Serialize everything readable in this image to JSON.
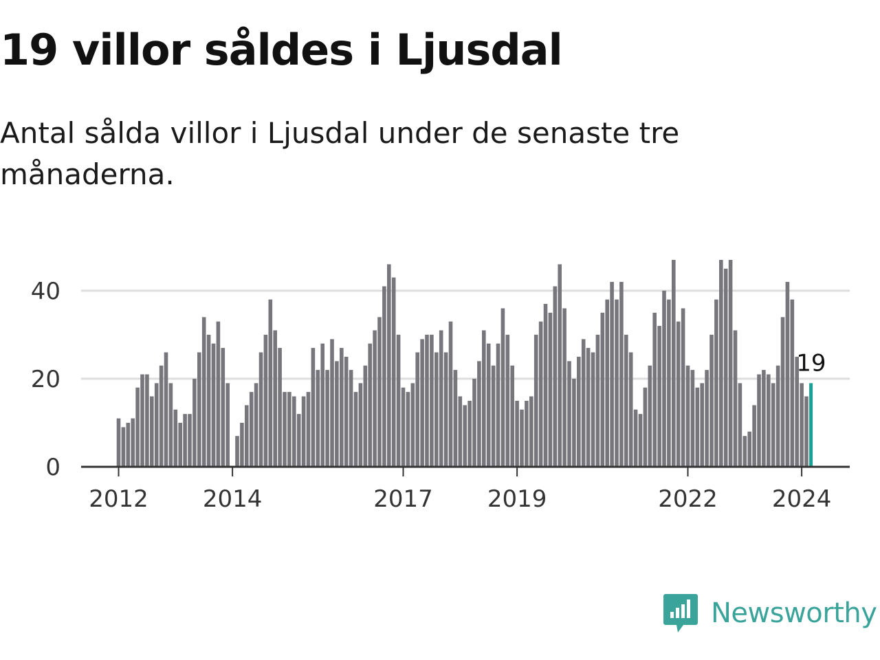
{
  "title": "19 villor såldes i Ljusdal",
  "subtitle": "Antal sålda villor i Ljusdal under de senaste tre månaderna.",
  "brand": {
    "name": "Newsworthy",
    "color": "#3aa39a",
    "icon": "bar-chart-speech-bubble-icon"
  },
  "colors": {
    "bars": "#77767c",
    "highlight": "#1aa197",
    "grid": "#dddddd",
    "axis": "#333333"
  },
  "chart_data": {
    "type": "bar",
    "title": "19 villor såldes i Ljusdal",
    "subtitle": "Antal sålda villor i Ljusdal under de senaste tre månaderna.",
    "xlabel": "",
    "ylabel": "",
    "ylim": [
      0,
      47
    ],
    "yticks": [
      0,
      20,
      40
    ],
    "xticks": [
      {
        "label": "2012",
        "index": 0
      },
      {
        "label": "2014",
        "index": 24
      },
      {
        "label": "2017",
        "index": 60
      },
      {
        "label": "2019",
        "index": 84
      },
      {
        "label": "2022",
        "index": 120
      },
      {
        "label": "2024",
        "index": 144
      }
    ],
    "grid": true,
    "legend": "none",
    "x_start": "2012-01",
    "x_end": "2024-03",
    "x_frequency": "monthly",
    "values": [
      11,
      9,
      10,
      11,
      18,
      21,
      21,
      16,
      19,
      23,
      26,
      19,
      13,
      10,
      12,
      12,
      20,
      26,
      34,
      30,
      28,
      33,
      27,
      19,
      null,
      7,
      10,
      14,
      17,
      19,
      26,
      30,
      38,
      31,
      27,
      17,
      17,
      16,
      12,
      16,
      17,
      27,
      22,
      28,
      22,
      29,
      24,
      27,
      25,
      22,
      17,
      19,
      23,
      28,
      31,
      34,
      41,
      46,
      43,
      30,
      18,
      17,
      19,
      26,
      29,
      30,
      30,
      26,
      31,
      26,
      33,
      22,
      16,
      14,
      15,
      20,
      24,
      31,
      28,
      23,
      28,
      36,
      30,
      23,
      15,
      13,
      15,
      16,
      30,
      33,
      37,
      35,
      41,
      46,
      36,
      24,
      20,
      25,
      29,
      27,
      26,
      30,
      35,
      38,
      42,
      38,
      42,
      30,
      26,
      13,
      12,
      18,
      23,
      35,
      32,
      40,
      38,
      47,
      33,
      36,
      23,
      22,
      18,
      19,
      22,
      30,
      38,
      47,
      45,
      47,
      31,
      19,
      7,
      8,
      14,
      21,
      22,
      21,
      19,
      23,
      34,
      42,
      38,
      25,
      19,
      16,
      19
    ],
    "highlight": {
      "index": 146,
      "value": 19,
      "label": "19"
    }
  }
}
